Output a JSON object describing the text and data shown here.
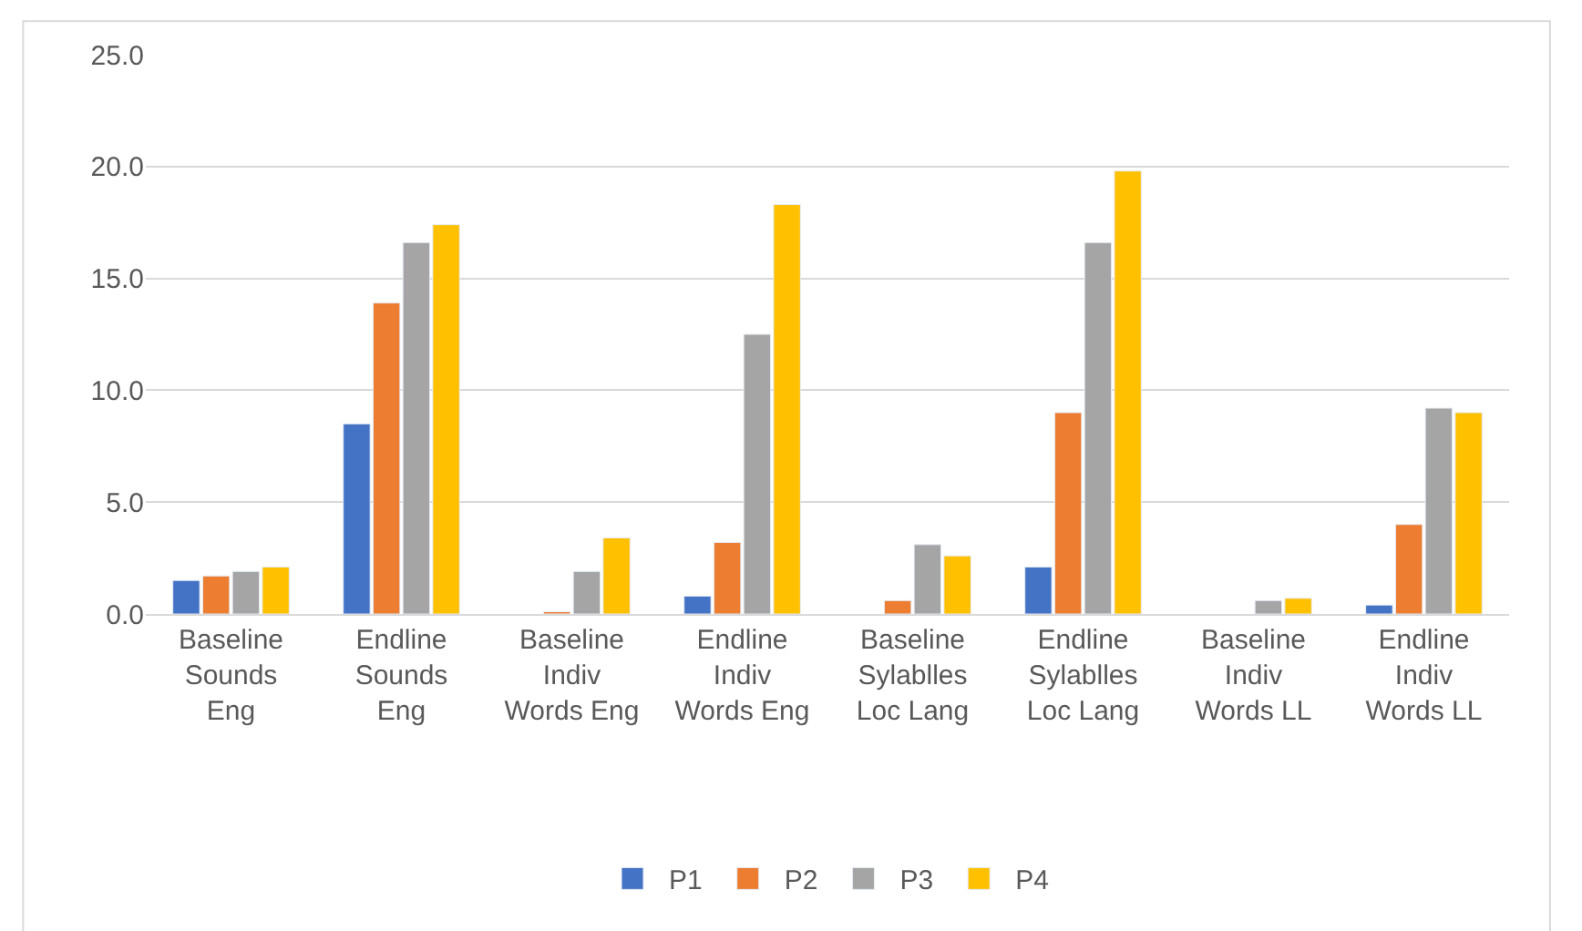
{
  "chart_data": {
    "type": "bar",
    "categories": [
      "Baseline Sounds Eng",
      "Endline Sounds Eng",
      "Baseline Indiv Words Eng",
      "Endline Indiv Words Eng",
      "Baseline Sylablles Loc Lang",
      "Endline Sylablles Loc Lang",
      "Baseline Indiv Words LL",
      "Endline Indiv Words LL"
    ],
    "series": [
      {
        "name": "P1",
        "color": "#4472c4",
        "values": [
          1.5,
          8.5,
          null,
          0.8,
          null,
          2.1,
          null,
          0.4
        ]
      },
      {
        "name": "P2",
        "color": "#ed7d31",
        "values": [
          1.7,
          13.9,
          0.1,
          3.2,
          0.6,
          9.0,
          null,
          4.0
        ]
      },
      {
        "name": "P3",
        "color": "#a5a5a5",
        "values": [
          1.9,
          16.6,
          1.9,
          12.5,
          3.1,
          16.6,
          0.6,
          9.2
        ]
      },
      {
        "name": "P4",
        "color": "#ffc000",
        "values": [
          2.1,
          17.4,
          3.4,
          18.3,
          2.6,
          19.8,
          0.7,
          9.0
        ]
      }
    ],
    "ylim": [
      0,
      25
    ],
    "yticks": [
      {
        "value": 0,
        "label": "0.0"
      },
      {
        "value": 5,
        "label": "5.0"
      },
      {
        "value": 10,
        "label": "10.0"
      },
      {
        "value": 15,
        "label": "15.0"
      },
      {
        "value": 20,
        "label": "20.0"
      },
      {
        "value": 25,
        "label": "25.0"
      }
    ],
    "grid": "y",
    "legend": "bottom"
  }
}
